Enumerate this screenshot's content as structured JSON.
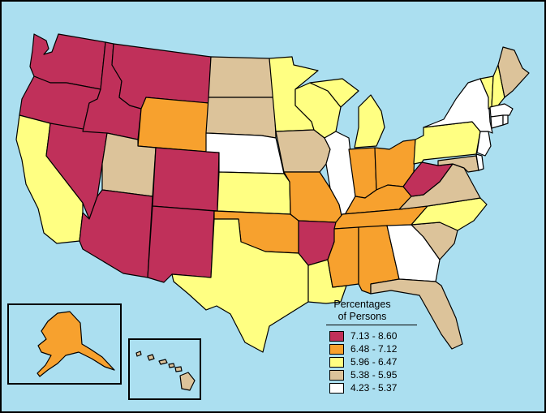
{
  "legend": {
    "title_line1": "Percentages",
    "title_line2": "of Persons",
    "classes": [
      {
        "label": "7.13 - 8.60",
        "color": "#c0305a"
      },
      {
        "label": "6.48 - 7.12",
        "color": "#f7a12e"
      },
      {
        "label": "5.96 - 6.47",
        "color": "#ffff82"
      },
      {
        "label": "5.38 - 5.95",
        "color": "#dcc39a"
      },
      {
        "label": "4.23 - 5.37",
        "color": "#ffffff"
      }
    ]
  },
  "states": {
    "WA": 0,
    "OR": 0,
    "ID": 0,
    "MT": 0,
    "NV": 0,
    "AZ": 0,
    "NM": 0,
    "CO": 0,
    "AR": 0,
    "WV": 0,
    "WY": 1,
    "OK": 1,
    "MO": 1,
    "IN": 1,
    "OH": 1,
    "KY": 1,
    "TN": 1,
    "MS": 1,
    "AL": 1,
    "AK": 1,
    "CA": 2,
    "KS": 2,
    "TX": 2,
    "LA": 2,
    "MN": 2,
    "WI": 2,
    "MI": 2,
    "PA": 2,
    "NC": 2,
    "VT": 2,
    "NH": 2,
    "UT": 3,
    "ND": 3,
    "SD": 3,
    "IA": 3,
    "VA": 3,
    "SC": 3,
    "FL": 3,
    "ME": 3,
    "HI": 3,
    "MD": 3,
    "NE": 4,
    "IL": 4,
    "GA": 4,
    "NY": 4,
    "NJ": 4,
    "MA": 4,
    "CT": 4,
    "RI": 4,
    "DE": 4
  }
}
